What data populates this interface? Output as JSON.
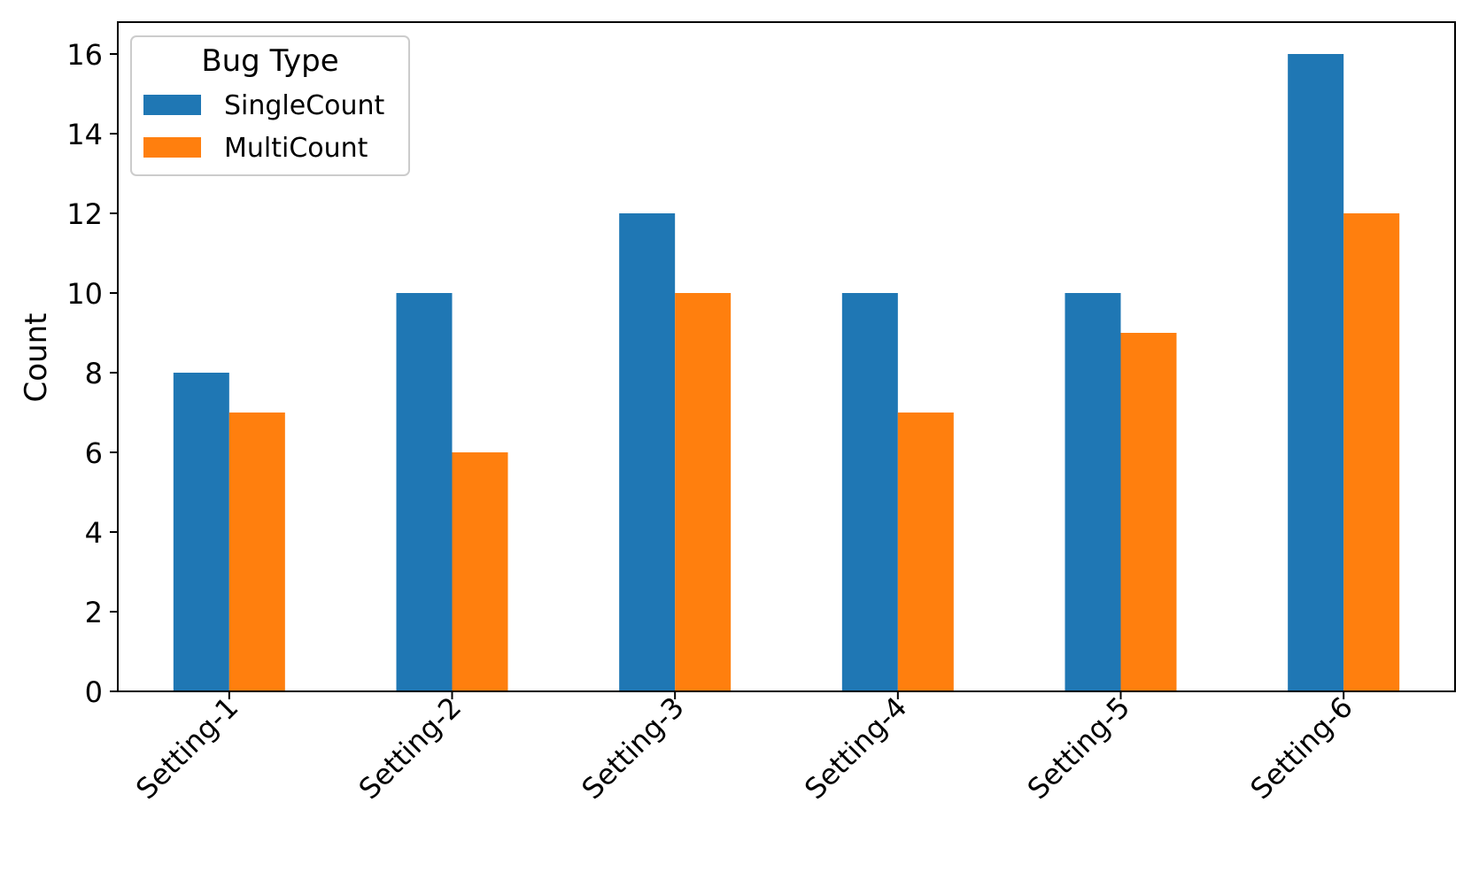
{
  "chart_data": {
    "type": "bar",
    "title": "",
    "xlabel": "",
    "ylabel": "Count",
    "categories": [
      "Setting-1",
      "Setting-2",
      "Setting-3",
      "Setting-4",
      "Setting-5",
      "Setting-6"
    ],
    "series": [
      {
        "name": "SingleCount",
        "color": "#1f77b4",
        "values": [
          8,
          10,
          12,
          10,
          10,
          16
        ]
      },
      {
        "name": "MultiCount",
        "color": "#ff7f0e",
        "values": [
          7,
          6,
          10,
          7,
          9,
          12
        ]
      }
    ],
    "ylim": [
      0,
      16.8
    ],
    "yticks": [
      0,
      2,
      4,
      6,
      8,
      10,
      12,
      14,
      16
    ],
    "legend": {
      "title": "Bug Type",
      "position": "top-left"
    },
    "grid": false
  }
}
